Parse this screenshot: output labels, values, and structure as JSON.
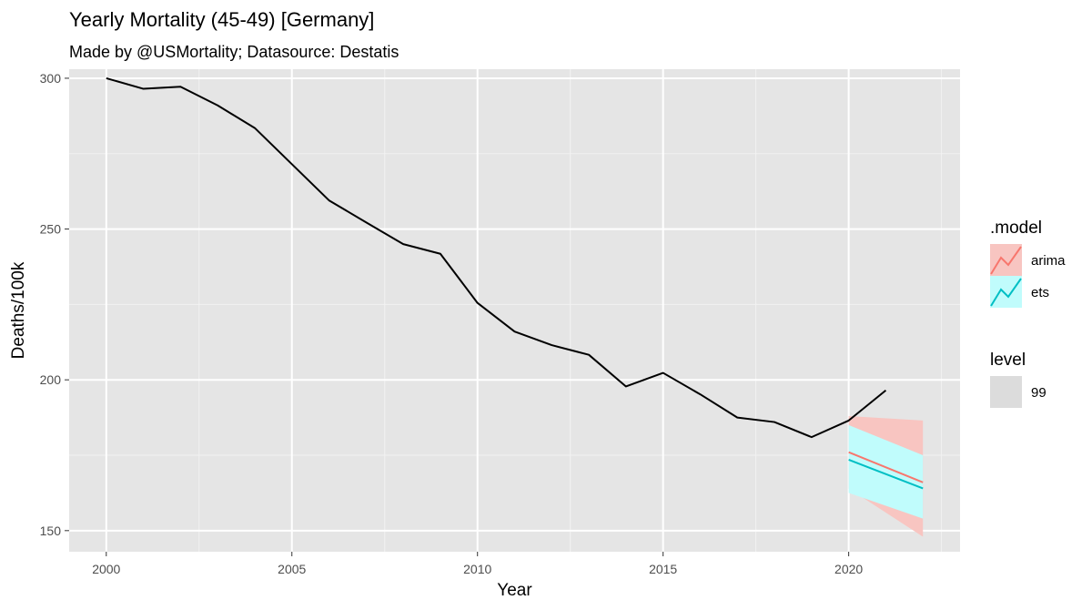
{
  "chart_data": {
    "type": "line",
    "title": "Yearly Mortality (45-49) [Germany]",
    "subtitle": "Made by @USMortality; Datasource: Destatis",
    "xlabel": "Year",
    "ylabel": "Deaths/100k",
    "xlim": [
      1999,
      2023
    ],
    "ylim": [
      143,
      303
    ],
    "x_ticks": [
      2000,
      2005,
      2010,
      2015,
      2020
    ],
    "y_ticks": [
      150,
      200,
      250,
      300
    ],
    "grid": true,
    "background": "#e5e5e5",
    "observed": {
      "color": "#000000",
      "x": [
        2000,
        2001,
        2002,
        2003,
        2004,
        2005,
        2006,
        2007,
        2008,
        2009,
        2010,
        2011,
        2012,
        2013,
        2014,
        2015,
        2016,
        2017,
        2018,
        2019,
        2020,
        2021
      ],
      "y": [
        300,
        296.5,
        297.2,
        291,
        283.5,
        271.5,
        259.5,
        252.2,
        245,
        241.8,
        225.5,
        216,
        211.5,
        208.3,
        197.8,
        202.3,
        195.2,
        187.5,
        186,
        181,
        186.5,
        196.5
      ]
    },
    "forecasts": [
      {
        "name": "arima",
        "color": "#f8766d",
        "fill": "#f8c5c1",
        "x": [
          2020,
          2022
        ],
        "mean": [
          176,
          166
        ],
        "lower": [
          164,
          148
        ],
        "upper": [
          188,
          186.5
        ]
      },
      {
        "name": "ets",
        "color": "#00bfc4",
        "fill": "#c0fcfc",
        "x": [
          2020,
          2022
        ],
        "mean": [
          173.5,
          164
        ],
        "lower": [
          162.5,
          154
        ],
        "upper": [
          185,
          175
        ]
      }
    ],
    "legend": {
      "placement": "right",
      "model_title": ".model",
      "model_items": [
        {
          "label": "arima",
          "color": "#f8766d",
          "fill": "#f8c5c1"
        },
        {
          "label": "ets",
          "color": "#00bfc4",
          "fill": "#c0fcfc"
        }
      ],
      "level_title": "level",
      "level_items": [
        {
          "label": "99",
          "fill": "#dcdcdc"
        }
      ]
    }
  }
}
